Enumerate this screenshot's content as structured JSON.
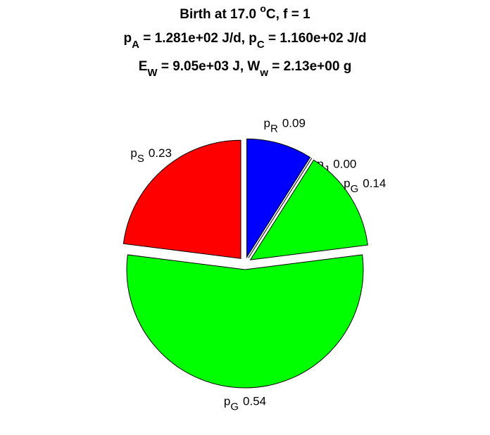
{
  "chart_data": {
    "type": "pie",
    "title_lines": [
      [
        {
          "text": "Birth at 17.0 "
        },
        {
          "text": "o",
          "sup": true
        },
        {
          "text": "C, f = 1"
        }
      ],
      [
        {
          "text": "p"
        },
        {
          "text": "A",
          "sub": true
        },
        {
          "text": " = 1.281e+02 J/d, p"
        },
        {
          "text": "C",
          "sub": true
        },
        {
          "text": " = 1.160e+02 J/d"
        }
      ],
      [
        {
          "text": "E"
        },
        {
          "text": "W",
          "sub": true
        },
        {
          "text": " = 9.05e+03 J, W"
        },
        {
          "text": "w",
          "sub": true
        },
        {
          "text": " = 2.13e+00 g"
        }
      ]
    ],
    "labels": [
      {
        "text": "p",
        "sub": "R"
      },
      {
        "text": "p",
        "sub": "J"
      },
      {
        "text": "p",
        "sub": "G"
      },
      {
        "text": "p",
        "sub": "G"
      },
      {
        "text": "p",
        "sub": "S"
      }
    ],
    "values": [
      0.09,
      0.0,
      0.14,
      0.54,
      0.23
    ],
    "value_labels": [
      "0.09",
      "0.00",
      "0.14",
      "0.54",
      "0.23"
    ],
    "colors": [
      "#0000ff",
      "#ffffff",
      "#00ff00",
      "#00ff00",
      "#ff0000"
    ],
    "explode": true
  }
}
